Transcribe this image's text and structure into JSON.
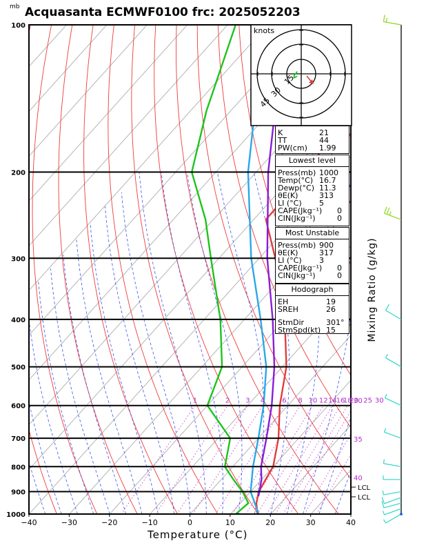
{
  "header": {
    "title": "Acquasanta ECMWF0100 frc: 2025052203",
    "pressure_unit": "mb",
    "hodograph_unit": "knots"
  },
  "chart_data": {
    "type": "skew-t log-p",
    "xlabel": "Temperature (°C)",
    "ylabel": "Mixing Ratio (g/kg)",
    "x_ticks": [
      "−40",
      "−30",
      "−20",
      "−10",
      "0",
      "10",
      "20",
      "30",
      "40"
    ],
    "x_range": [
      -40,
      40
    ],
    "pressure_levels": [
      1000,
      900,
      800,
      700,
      600,
      500,
      400,
      300,
      200,
      100
    ],
    "pressure_labels": [
      "1000",
      "900",
      "800",
      "700",
      "600",
      "500",
      "400",
      "300",
      "200",
      "100"
    ],
    "mixing_ratio_labels": [
      "1",
      "2",
      "3",
      "4",
      "6",
      "8",
      "10",
      "12",
      "14",
      "16",
      "18",
      "20",
      "25",
      "30"
    ],
    "mixing_ratio_values": [
      1,
      2,
      3,
      4,
      6,
      8,
      10,
      12,
      14,
      16,
      18,
      20,
      25,
      30
    ],
    "theta_e_labels": [
      "30",
      "35",
      "40"
    ],
    "lcl_labels": [
      "LCL",
      "LCL"
    ],
    "series": [
      {
        "name": "Temperature",
        "color": "#e23b3b",
        "points": [
          [
            1000,
            16.7
          ],
          [
            950,
            14.0
          ],
          [
            900,
            12.0
          ],
          [
            850,
            11.0
          ],
          [
            800,
            10.0
          ],
          [
            700,
            5.0
          ],
          [
            600,
            -2.0
          ],
          [
            500,
            -9.0
          ],
          [
            400,
            -20.0
          ],
          [
            300,
            -36.0
          ],
          [
            250,
            -47.0
          ],
          [
            200,
            -47.0
          ],
          [
            150,
            -52.0
          ],
          [
            100,
            -60.0
          ]
        ]
      },
      {
        "name": "Dewpoint",
        "color": "#1cc31c",
        "points": [
          [
            1000,
            11.3
          ],
          [
            950,
            12.0
          ],
          [
            900,
            8.0
          ],
          [
            850,
            3.0
          ],
          [
            800,
            -2.0
          ],
          [
            700,
            -7.0
          ],
          [
            600,
            -20.0
          ],
          [
            500,
            -25.0
          ],
          [
            400,
            -36.0
          ],
          [
            300,
            -52.0
          ],
          [
            250,
            -62.0
          ],
          [
            200,
            -76.0
          ],
          [
            150,
            -86.0
          ],
          [
            100,
            -98.0
          ]
        ]
      },
      {
        "name": "Parcel (mixed)",
        "color": "#29a7e8",
        "points": [
          [
            1000,
            17.0
          ],
          [
            900,
            10.0
          ],
          [
            800,
            5.0
          ],
          [
            700,
            0.0
          ],
          [
            600,
            -6.0
          ],
          [
            500,
            -14.0
          ],
          [
            400,
            -26.0
          ],
          [
            300,
            -42.0
          ],
          [
            200,
            -62.0
          ],
          [
            150,
            -74.0
          ],
          [
            100,
            -89.0
          ]
        ]
      },
      {
        "name": "Parcel (most unstable)",
        "color": "#8a1cd8",
        "points": [
          [
            920,
            13.0
          ],
          [
            850,
            10.0
          ],
          [
            800,
            7.0
          ],
          [
            700,
            2.0
          ],
          [
            600,
            -4.0
          ],
          [
            500,
            -12.0
          ],
          [
            400,
            -23.0
          ],
          [
            300,
            -38.0
          ],
          [
            200,
            -57.0
          ],
          [
            150,
            -69.0
          ],
          [
            100,
            -84.0
          ]
        ]
      }
    ],
    "winds_kt": [
      {
        "p": 1000,
        "dir": 240,
        "spd": 5
      },
      {
        "p": 975,
        "dir": 250,
        "spd": 7
      },
      {
        "p": 950,
        "dir": 255,
        "spd": 8
      },
      {
        "p": 925,
        "dir": 250,
        "spd": 8
      },
      {
        "p": 900,
        "dir": 260,
        "spd": 7
      },
      {
        "p": 850,
        "dir": 270,
        "spd": 6
      },
      {
        "p": 800,
        "dir": 280,
        "spd": 5
      },
      {
        "p": 700,
        "dir": 290,
        "spd": 5
      },
      {
        "p": 600,
        "dir": 295,
        "spd": 5
      },
      {
        "p": 500,
        "dir": 300,
        "spd": 5
      },
      {
        "p": 400,
        "dir": 300,
        "spd": 10
      },
      {
        "p": 250,
        "dir": 290,
        "spd": 25
      },
      {
        "p": 100,
        "dir": 280,
        "spd": 15
      }
    ],
    "hodograph": {
      "rings_kt": [
        15,
        30,
        45
      ],
      "ring_labels": [
        "15",
        "30",
        "45"
      ],
      "trace_kt": [
        [
          -4.3,
          -2.5
        ],
        [
          -6.5,
          -3.8
        ],
        [
          -7.5,
          -4.0
        ],
        [
          -7.5,
          -2.7
        ],
        [
          -6.9,
          -1.2
        ],
        [
          -6.0,
          0.0
        ],
        [
          -4.9,
          0.9
        ],
        [
          -4.7,
          1.7
        ],
        [
          -4.5,
          2.1
        ],
        [
          -4.3,
          2.5
        ]
      ],
      "storm_motion": {
        "dir": 301,
        "spd": 15
      }
    }
  },
  "stats": {
    "general": [
      {
        "label": "K",
        "value": "21"
      },
      {
        "label": "TT",
        "value": "44"
      },
      {
        "label": "PW(cm)",
        "value": "1.99"
      }
    ],
    "lowest": {
      "title": "Lowest level",
      "rows": [
        {
          "label": "Press(mb)",
          "value": "1000"
        },
        {
          "label": "Temp(°C)",
          "value": "16.7"
        },
        {
          "label": "Dewp(°C)",
          "value": "11.3"
        },
        {
          "label": "θE(K)",
          "value": "313"
        },
        {
          "label": "LI (°C)",
          "value": "5"
        },
        {
          "label": "CAPE(Jkg⁻¹)",
          "value": "0"
        },
        {
          "label": "CIN(Jkg⁻¹)",
          "value": "0"
        }
      ]
    },
    "unstable": {
      "title": "Most Unstable",
      "rows": [
        {
          "label": "Press(mb)",
          "value": "900"
        },
        {
          "label": "θE(K)",
          "value": "317"
        },
        {
          "label": "LI (°C)",
          "value": "3"
        },
        {
          "label": "CAPE(Jkg⁻¹)",
          "value": "0"
        },
        {
          "label": "CIN(Jkg⁻¹)",
          "value": "0"
        }
      ]
    },
    "hodograph": {
      "title": "Hodograph",
      "rows": [
        {
          "label": "EH",
          "value": "19"
        },
        {
          "label": "SREH",
          "value": "26"
        }
      ],
      "rows2": [
        {
          "label": "StmDir",
          "value": "301°"
        },
        {
          "label": "StmSpd(kt)",
          "value": "15"
        }
      ]
    }
  }
}
